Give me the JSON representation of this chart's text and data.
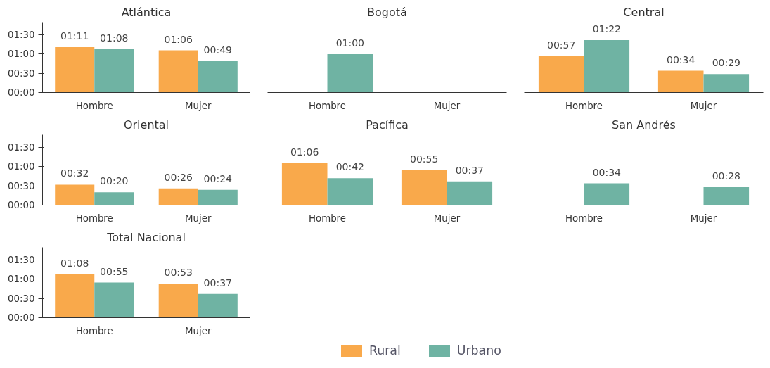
{
  "chart_data": [
    {
      "type": "bar",
      "title": "Atlántica",
      "categories": [
        "Hombre",
        "Mujer"
      ],
      "ylim": [
        0,
        110
      ],
      "yticks": [
        {
          "value": 0,
          "label": "00:00"
        },
        {
          "value": 30,
          "label": "00:30"
        },
        {
          "value": 60,
          "label": "01:00"
        },
        {
          "value": 90,
          "label": "01:30"
        }
      ],
      "grid": false,
      "legend": "bottom",
      "series": [
        {
          "name": "Rural",
          "color": "#f9a94b",
          "values": [
            71,
            66
          ],
          "value_labels": [
            "01:11",
            "01:06"
          ]
        },
        {
          "name": "Urbano",
          "color": "#6fb3a3",
          "values": [
            68,
            49
          ],
          "value_labels": [
            "01:08",
            "00:49"
          ]
        }
      ]
    },
    {
      "type": "bar",
      "title": "Bogotá",
      "categories": [
        "Hombre",
        "Mujer"
      ],
      "tick_labels": "x",
      "grid": false,
      "series": [
        {
          "color": "#f9a94b",
          "values": [
            null,
            null
          ],
          "value_labels": [
            null,
            null
          ]
        },
        {
          "color": "#6fb3a3",
          "values": [
            60,
            null
          ],
          "value_labels": [
            "01:00",
            null
          ]
        }
      ]
    },
    {
      "type": "bar",
      "title": "Central",
      "categories": [
        "Hombre",
        "Mujer"
      ],
      "tick_labels": "x",
      "grid": false,
      "series": [
        {
          "color": "#f9a94b",
          "values": [
            57,
            34
          ],
          "value_labels": [
            "00:57",
            "00:34"
          ]
        },
        {
          "color": "#6fb3a3",
          "values": [
            82,
            29
          ],
          "value_labels": [
            "01:22",
            "00:29"
          ]
        }
      ]
    },
    {
      "type": "bar",
      "title": "Oriental",
      "categories": [
        "Hombre",
        "Mujer"
      ],
      "ylim": [
        0,
        110
      ],
      "yticks": [
        {
          "value": 0,
          "label": "00:00"
        },
        {
          "value": 30,
          "label": "00:30"
        },
        {
          "value": 60,
          "label": "01:00"
        },
        {
          "value": 90,
          "label": "01:30"
        }
      ],
      "grid": false,
      "series": [
        {
          "color": "#f9a94b",
          "values": [
            32,
            26
          ],
          "value_labels": [
            "00:32",
            "00:26"
          ]
        },
        {
          "color": "#6fb3a3",
          "values": [
            20,
            24
          ],
          "value_labels": [
            "00:20",
            "00:24"
          ]
        }
      ]
    },
    {
      "type": "bar",
      "title": "Pacífica",
      "categories": [
        "Hombre",
        "Mujer"
      ],
      "tick_labels": "x",
      "grid": false,
      "series": [
        {
          "color": "#f9a94b",
          "values": [
            66,
            55
          ],
          "value_labels": [
            "01:06",
            "00:55"
          ]
        },
        {
          "color": "#6fb3a3",
          "values": [
            42,
            37
          ],
          "value_labels": [
            "00:42",
            "00:37"
          ]
        }
      ]
    },
    {
      "type": "bar",
      "title": "San Andrés",
      "categories": [
        "Hombre",
        "Mujer"
      ],
      "tick_labels": "x",
      "grid": false,
      "series": [
        {
          "color": "#f9a94b",
          "values": [
            null,
            null
          ],
          "value_labels": [
            null,
            null
          ]
        },
        {
          "color": "#6fb3a3",
          "values": [
            34,
            28
          ],
          "value_labels": [
            "00:34",
            "00:28"
          ]
        }
      ]
    },
    {
      "type": "bar",
      "title": "Total Nacional",
      "categories": [
        "Hombre",
        "Mujer"
      ],
      "ylim": [
        0,
        110
      ],
      "yticks": [
        {
          "value": 0,
          "label": "00:00"
        },
        {
          "value": 30,
          "label": "00:30"
        },
        {
          "value": 60,
          "label": "01:00"
        },
        {
          "value": 90,
          "label": "01:30"
        }
      ],
      "grid": false,
      "series": [
        {
          "color": "#f9a94b",
          "values": [
            68,
            53
          ],
          "value_labels": [
            "01:08",
            "00:53"
          ]
        },
        {
          "color": "#6fb3a3",
          "values": [
            55,
            37
          ],
          "value_labels": [
            "00:55",
            "00:37"
          ]
        }
      ]
    }
  ]
}
